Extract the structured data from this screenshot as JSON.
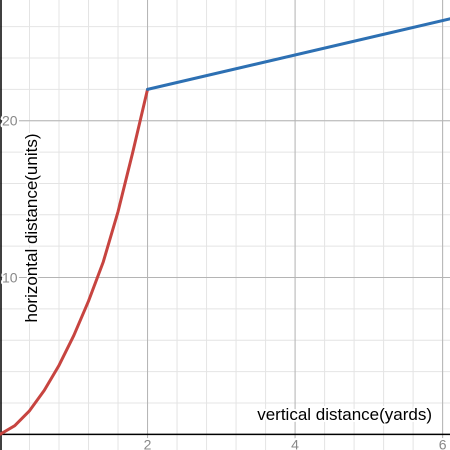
{
  "chart_data": {
    "type": "line",
    "title": "",
    "xlabel": "vertical distance(yards)",
    "ylabel": "horizontal distance(units)",
    "xlim": [
      0,
      6.1
    ],
    "ylim": [
      -1.0,
      27.7
    ],
    "x_ticks": [
      2,
      4,
      6
    ],
    "x_tick_labels": [
      "2",
      "4",
      "6"
    ],
    "y_ticks": [
      10,
      20
    ],
    "y_tick_labels": [
      "10",
      "20"
    ],
    "grid": true,
    "minor_grid_step_x": 0.4,
    "minor_grid_step_y": 2,
    "series": [
      {
        "color": "#c74440",
        "x": [
          0,
          0.2,
          0.4,
          0.6,
          0.8,
          1.0,
          1.2,
          1.4,
          1.6,
          1.8,
          2.0
        ],
        "y": [
          0,
          0.55,
          1.5,
          2.8,
          4.4,
          6.3,
          8.5,
          11.0,
          14.2,
          18.0,
          22.0
        ]
      },
      {
        "color": "#2d70b3",
        "x": [
          2.0,
          6.1
        ],
        "y": [
          22.0,
          26.5
        ]
      }
    ]
  },
  "colors": {
    "axis": "#000000",
    "major_grid": "#b4b4b4",
    "minor_grid": "#e4e4e4",
    "tick_label": "#888888"
  }
}
